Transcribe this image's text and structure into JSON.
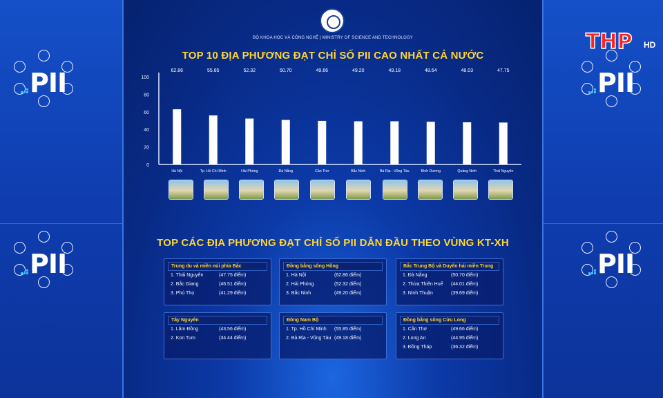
{
  "ministry_line": "BỘ KHOA HỌC VÀ CÔNG NGHỆ | MINISTRY OF SCIENCE AND TECHNOLOGY",
  "badge_text": "PII",
  "channel": {
    "logo": "THP",
    "hd": "HD"
  },
  "top10_title": "TOP 10 ĐỊA PHƯƠNG ĐẠT CHỈ SỐ PII CAO NHẤT CẢ NƯỚC",
  "chart_data": {
    "type": "bar",
    "categories": [
      "Hà Nội",
      "Tp. Hồ Chí Minh",
      "Hải Phòng",
      "Đà Nẵng",
      "Cần Thơ",
      "Bắc Ninh",
      "Bà Rịa - Vũng Tàu",
      "Bình Dương",
      "Quảng Ninh",
      "Thái Nguyên"
    ],
    "values": [
      62.86,
      55.85,
      52.32,
      50.7,
      49.66,
      49.2,
      49.18,
      48.64,
      48.03,
      47.75
    ],
    "value_labels": [
      "62.86",
      "55.85",
      "52.32",
      "50.70",
      "49.66",
      "49.20",
      "49.18",
      "48.64",
      "48.03",
      "47.75"
    ],
    "y_ticks": [
      "0",
      "20",
      "40",
      "60",
      "80",
      "100"
    ],
    "ylim": [
      0,
      100
    ],
    "grid": false,
    "bar_color": "#ffffff",
    "xlabel": "",
    "ylabel": ""
  },
  "regions_title": "TOP CÁC ĐỊA PHƯƠNG ĐẠT CHỈ SỐ PII DẪN ĐẦU THEO VÙNG KT-XH",
  "regions": [
    {
      "name": "Trung du và miền núi phía Bắc",
      "rows": [
        {
          "name": "1. Thái Nguyên",
          "score": "(47.75 điểm)"
        },
        {
          "name": "2. Bắc Giang",
          "score": "(46.51 điểm)"
        },
        {
          "name": "3. Phú Thọ",
          "score": "(41.29 điểm)"
        }
      ]
    },
    {
      "name": "Đồng bằng sông Hồng",
      "rows": [
        {
          "name": "1. Hà Nội",
          "score": "(62.86 điểm)"
        },
        {
          "name": "2. Hải Phòng",
          "score": "(52.32 điểm)"
        },
        {
          "name": "3. Bắc Ninh",
          "score": "(49.20 điểm)"
        }
      ]
    },
    {
      "name": "Bắc Trung Bộ và Duyên hải miền Trung",
      "rows": [
        {
          "name": "1. Đà Nẵng",
          "score": "(50.70 điểm)"
        },
        {
          "name": "2. Thừa Thiên Huế",
          "score": "(44.01 điểm)"
        },
        {
          "name": "3. Ninh Thuận",
          "score": "(39.69 điểm)"
        }
      ]
    },
    {
      "name": "Tây Nguyên",
      "rows": [
        {
          "name": "1. Lâm Đồng",
          "score": "(43.56 điểm)"
        },
        {
          "name": "2. Kon Tum",
          "score": "(34.44 điểm)"
        }
      ]
    },
    {
      "name": "Đông Nam Bộ",
      "rows": [
        {
          "name": "1. Tp. Hồ Chí Minh",
          "score": "(55.85 điểm)"
        },
        {
          "name": "2. Bà Rịa - Vũng Tàu",
          "score": "(49.18 điểm)"
        }
      ]
    },
    {
      "name": "Đồng bằng sông Cửu Long",
      "rows": [
        {
          "name": "1. Cần Thơ",
          "score": "(49.66 điểm)"
        },
        {
          "name": "2. Long An",
          "score": "(44.95 điểm)"
        },
        {
          "name": "3. Đồng Tháp",
          "score": "(36.32 điểm)"
        }
      ]
    }
  ]
}
